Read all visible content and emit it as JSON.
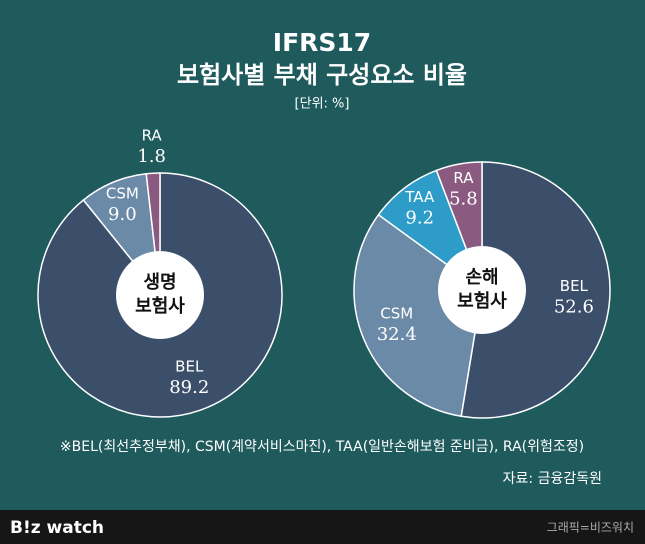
{
  "header": {
    "title": "IFRS17",
    "subtitle": "보험사별 부채 구성요소 비율",
    "unit": "[단위: %]"
  },
  "chart_data": [
    {
      "type": "pie",
      "center_label": [
        "생명",
        "보험사"
      ],
      "categories": [
        "BEL",
        "CSM",
        "RA"
      ],
      "values": [
        89.2,
        9.0,
        1.8
      ],
      "value_labels": [
        "89.2",
        "9.0",
        "1.8"
      ],
      "colors": [
        "#3b4f6b",
        "#6b8aa8",
        "#8a5a80"
      ]
    },
    {
      "type": "pie",
      "center_label": [
        "손해",
        "보험사"
      ],
      "categories": [
        "BEL",
        "CSM",
        "TAA",
        "RA"
      ],
      "values": [
        52.6,
        32.4,
        9.2,
        5.8
      ],
      "colors": [
        "#3b4f6b",
        "#6b8aa8",
        "#2e9cc8",
        "#8a5a80"
      ]
    }
  ],
  "footnote": "※BEL(최선추정부채), CSM(계약서비스마진), TAA(일반손해보험 준비금), RA(위험조정)",
  "source": "자료: 금융감독원",
  "brand": "B!z watch",
  "credit": "그래픽=비즈워치"
}
